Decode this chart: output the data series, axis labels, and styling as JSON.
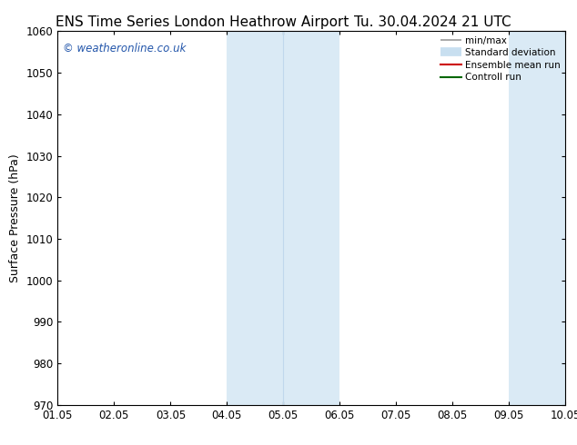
{
  "title_left": "ENS Time Series London Heathrow Airport",
  "title_right": "Tu. 30.04.2024 21 UTC",
  "ylabel": "Surface Pressure (hPa)",
  "ylim": [
    970,
    1060
  ],
  "yticks": [
    970,
    980,
    990,
    1000,
    1010,
    1020,
    1030,
    1040,
    1050,
    1060
  ],
  "xtick_labels": [
    "01.05",
    "02.05",
    "03.05",
    "04.05",
    "05.05",
    "06.05",
    "07.05",
    "08.05",
    "09.05",
    "10.05"
  ],
  "xlim": [
    0,
    9
  ],
  "shaded_bands": [
    {
      "xmin": 3.0,
      "xmax": 5.0,
      "color": "#daeaf5"
    },
    {
      "xmin": 8.0,
      "xmax": 9.0,
      "color": "#daeaf5"
    }
  ],
  "inner_dividers": [
    {
      "x": 4.0,
      "color": "#c0d8ec"
    },
    {
      "x": 9.0,
      "color": "#c0d8ec"
    }
  ],
  "watermark_text": "© weatheronline.co.uk",
  "watermark_color": "#2255aa",
  "legend_items": [
    {
      "label": "min/max",
      "color": "#999999",
      "lw": 1.2
    },
    {
      "label": "Standard deviation",
      "color": "#c8dff0",
      "lw": 7
    },
    {
      "label": "Ensemble mean run",
      "color": "#cc0000",
      "lw": 1.5
    },
    {
      "label": "Controll run",
      "color": "#006600",
      "lw": 1.5
    }
  ],
  "bg_color": "#ffffff",
  "title_fontsize": 11,
  "axis_label_fontsize": 9,
  "tick_fontsize": 8.5
}
